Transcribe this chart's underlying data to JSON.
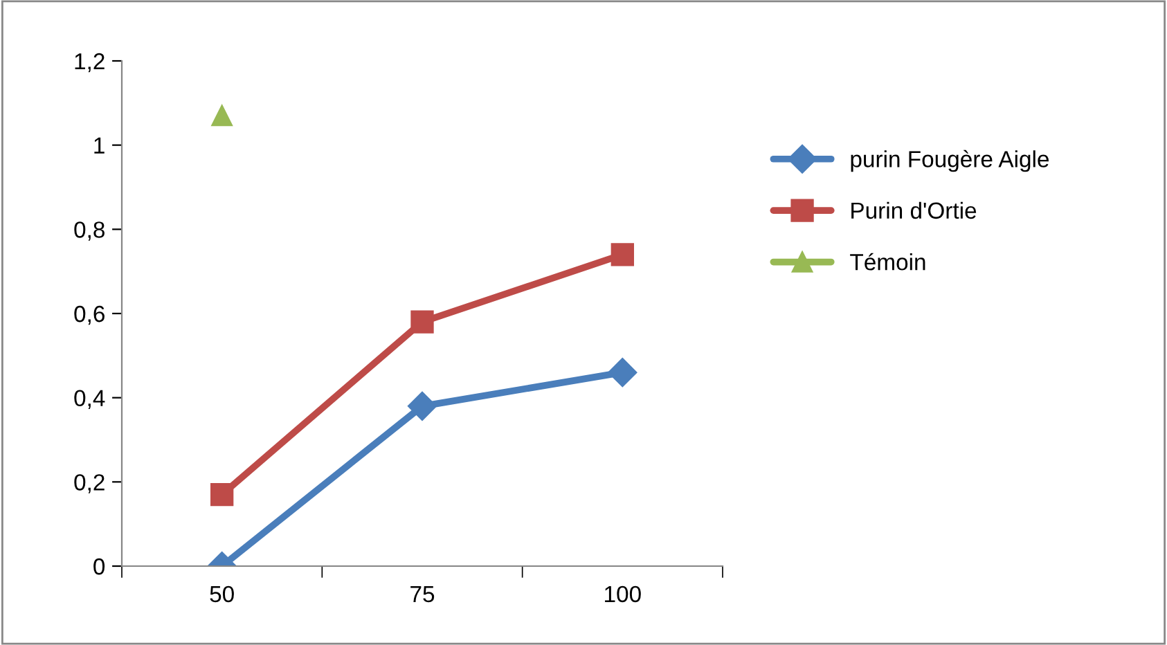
{
  "chart_data": {
    "type": "line",
    "categories": [
      "50",
      "75",
      "100"
    ],
    "series": [
      {
        "name": "purin Fougère Aigle",
        "color": "#4a7ebb",
        "marker": "diamond",
        "values": [
          0,
          0.38,
          0.46
        ]
      },
      {
        "name": "Purin d'Ortie",
        "color": "#be4b48",
        "marker": "square",
        "values": [
          0.17,
          0.58,
          0.74
        ]
      },
      {
        "name": "Témoin",
        "color": "#98b954",
        "marker": "triangle",
        "values": [
          1.07,
          null,
          null
        ]
      }
    ],
    "ylim": [
      0,
      1.2
    ],
    "yticks": [
      0,
      {
        "value": 0.2,
        "label": "0,2"
      },
      {
        "value": 0.4,
        "label": "0,4"
      },
      {
        "value": 0.6,
        "label": "0,6"
      },
      {
        "value": 0.8,
        "label": "0,8"
      },
      1,
      {
        "value": 1.2,
        "label": "1,2"
      }
    ],
    "grid": false,
    "legend": "right",
    "line_style": "solid"
  }
}
